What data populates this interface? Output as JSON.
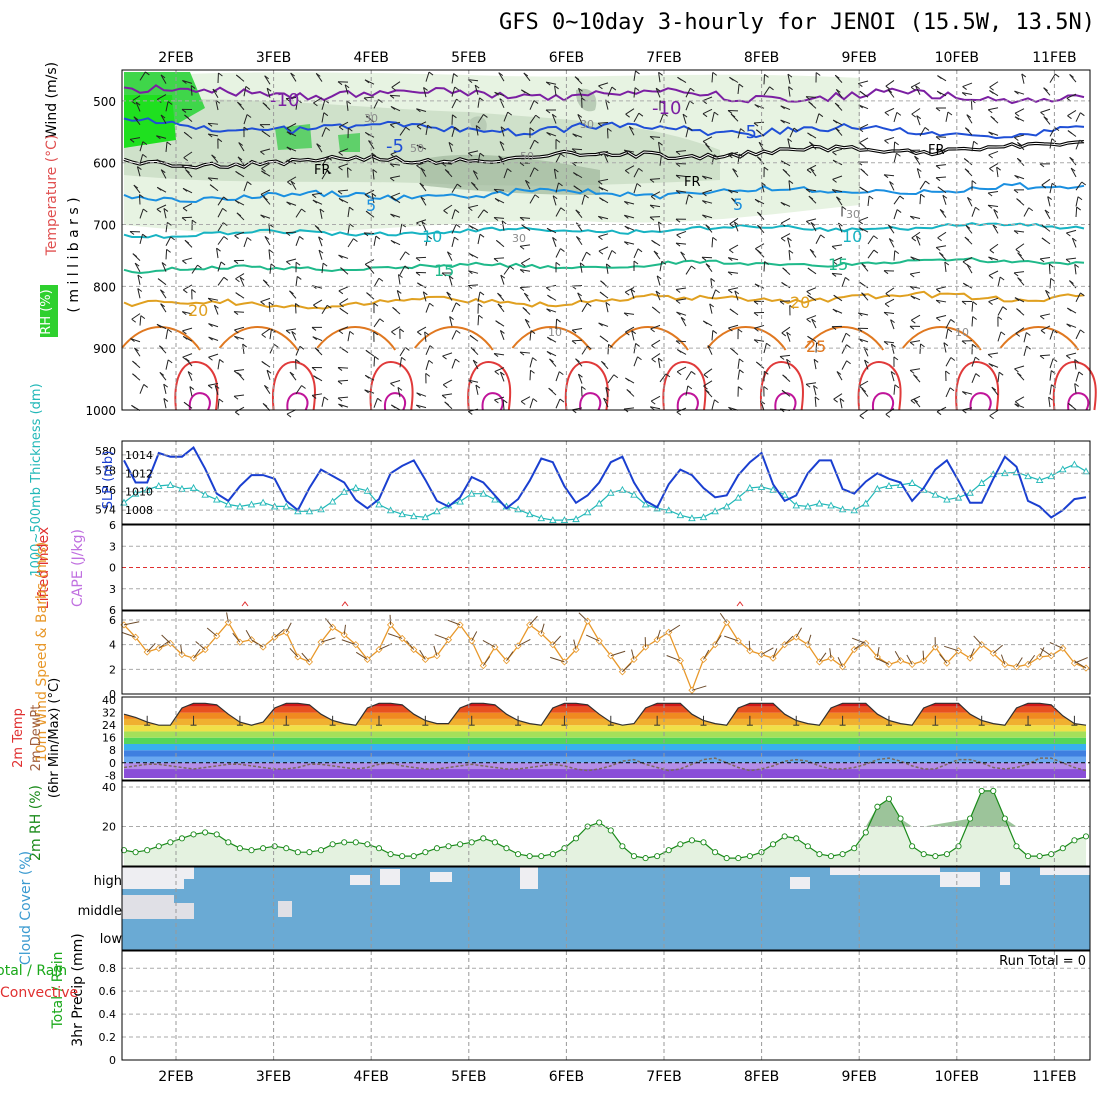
{
  "title": "GFS 0~10day 3-hourly for JENOI (15.5W, 13.5N)",
  "dates": [
    "2FEB",
    "3FEB",
    "4FEB",
    "5FEB",
    "6FEB",
    "7FEB",
    "8FEB",
    "9FEB",
    "10FEB",
    "11FEB"
  ],
  "chart_data": [
    {
      "panel": "upper_air",
      "type": "heatmap",
      "ylabel": [
        "Wind (m/s)",
        "Temperature (°C)",
        "RH (%)",
        "( m i l l i b a r s )"
      ],
      "yticks": [
        500,
        600,
        700,
        800,
        900,
        1000
      ],
      "temperature_contours": [
        {
          "label": "-10",
          "color": "#7b1fa2"
        },
        {
          "label": "-5",
          "color": "#1f4fd6"
        },
        {
          "label": "FR",
          "color": "#000000"
        },
        {
          "label": "5",
          "color": "#1a8fe0"
        },
        {
          "label": "10",
          "color": "#17b3c2"
        },
        {
          "label": "15",
          "color": "#1fb98a"
        },
        {
          "label": "20",
          "color": "#e0a020"
        },
        {
          "label": "25",
          "color": "#e07820"
        }
      ],
      "rh_labels": [
        "30",
        "50",
        "30",
        "10"
      ]
    },
    {
      "panel": "thickness_slp",
      "type": "line",
      "y_left_label": "1000~500mb Thickness (dm)",
      "y_right_label": "SLP (mb)",
      "y_left_ticks": [
        574,
        576,
        578,
        580
      ],
      "y_right_ticks": [
        1008,
        1010,
        1012,
        1014
      ],
      "series": [
        {
          "name": "SLP (mb)",
          "color": "#1a3fd0",
          "values": [
            1013.4,
            1011.0,
            1011.0,
            1014.2,
            1013.8,
            1013.8,
            1014.8,
            1012.5,
            1009.8,
            1009.0,
            1010.6,
            1011.8,
            1011.8,
            1011.4,
            1009.0,
            1008.0,
            1010.4,
            1012.4,
            1011.7,
            1011.0,
            1009.1,
            1008.2,
            1009.2,
            1012.0,
            1012.8,
            1013.4,
            1011.3,
            1009.0,
            1008.4,
            1009.4,
            1011.6,
            1011.0,
            1009.6,
            1008.2,
            1009.2,
            1011.2,
            1013.6,
            1013.2,
            1010.6,
            1008.8,
            1009.6,
            1011.0,
            1013.2,
            1013.8,
            1011.0,
            1009.0,
            1008.3,
            1010.8,
            1012.4,
            1011.8,
            1010.4,
            1009.4,
            1009.6,
            1011.8,
            1013.2,
            1014.2,
            1010.8,
            1009.0,
            1009.6,
            1012.0,
            1013.4,
            1013.4,
            1010.3,
            1009.8,
            1011.1,
            1012.0,
            1011.4,
            1011.0,
            1009.0,
            1010.4,
            1012.4,
            1013.4,
            1011.2,
            1008.8,
            1008.8,
            1011.4,
            1013.8,
            1012.7,
            1009.0,
            1008.4,
            1007.2,
            1008.0,
            1009.2,
            1009.4
          ]
        },
        {
          "name": "1000~500mb Thickness (dm)",
          "color": "#22b8b8",
          "values": [
            574.7,
            575.6,
            576.0,
            576.4,
            576.5,
            576.1,
            576.2,
            575.5,
            575.0,
            574.5,
            574.3,
            574.5,
            574.7,
            574.3,
            574.3,
            573.8,
            573.8,
            574.0,
            574.8,
            575.8,
            576.2,
            575.9,
            574.5,
            573.9,
            573.5,
            573.3,
            573.2,
            573.8,
            574.4,
            574.8,
            575.6,
            575.6,
            575.0,
            574.3,
            574.0,
            573.5,
            573.1,
            572.9,
            572.9,
            573.0,
            573.7,
            574.6,
            575.7,
            576.0,
            575.5,
            574.5,
            574.1,
            573.9,
            573.4,
            573.1,
            573.2,
            573.8,
            574.3,
            575.2,
            576.2,
            576.3,
            576.0,
            575.5,
            574.4,
            574.3,
            574.6,
            574.4,
            574.0,
            573.9,
            574.6,
            576.1,
            576.4,
            576.5,
            576.7,
            576.0,
            575.5,
            575.0,
            575.2,
            575.7,
            576.7,
            577.6,
            577.7,
            577.8,
            577.4,
            577.0,
            577.4,
            578.1,
            578.6,
            577.9
          ]
        }
      ]
    },
    {
      "panel": "cape_li",
      "type": "line",
      "y_left_label": "Lifted Index",
      "y_right_label": "CAPE (J/kg)",
      "y_left_ticks": [
        6,
        3,
        0,
        -3,
        -6
      ]
    },
    {
      "panel": "wind_10m",
      "type": "line",
      "ylabel": "10m Wind Speed & Barbs (m/s)",
      "y_ticks": [
        0,
        2,
        4,
        6
      ],
      "series": [
        {
          "name": "10m Wind Speed & Barbs",
          "color": "#e8982a",
          "values": [
            5.6,
            4.6,
            3.4,
            3.7,
            4.1,
            3.2,
            2.9,
            3.6,
            4.7,
            5.8,
            4.2,
            4.4,
            3.8,
            4.6,
            5.0,
            3.0,
            2.6,
            4.2,
            5.4,
            4.8,
            4.0,
            2.8,
            3.6,
            5.6,
            4.5,
            3.6,
            2.8,
            3.1,
            4.4,
            5.6,
            4.3,
            2.3,
            3.8,
            2.7,
            3.9,
            5.6,
            4.9,
            4.0,
            2.6,
            3.6,
            5.9,
            4.3,
            3.1,
            1.8,
            2.8,
            3.8,
            4.4,
            5.0,
            2.7,
            0.3,
            2.8,
            4.0,
            5.8,
            4.3,
            3.5,
            3.2,
            2.9,
            4.0,
            4.6,
            4.0,
            2.6,
            2.9,
            2.2,
            3.6,
            4.1,
            3.0,
            2.4,
            2.7,
            2.4,
            2.7,
            3.8,
            2.5,
            3.5,
            2.9,
            4.0,
            3.3,
            2.4,
            2.2,
            2.4,
            3.0,
            3.1,
            3.7,
            2.5,
            2.1
          ]
        }
      ]
    },
    {
      "panel": "temp_2m",
      "type": "area",
      "ylabel": [
        "2m Temp",
        "2m DewPt",
        "(6hr Min/Max) (°C)"
      ],
      "y_ticks": [
        40,
        32,
        24,
        16,
        8,
        0,
        -8
      ],
      "series": [
        {
          "name": "2m Temp",
          "color": "#303030",
          "values": [
            31,
            29,
            26,
            24,
            24,
            35,
            38,
            38,
            37,
            31,
            26,
            24,
            26,
            35,
            38,
            38,
            37,
            31,
            27,
            25,
            24,
            35,
            38,
            38,
            37,
            31,
            27,
            25,
            25,
            35,
            38,
            38,
            37,
            31,
            27,
            25,
            24,
            35,
            38,
            38,
            37,
            31,
            26,
            24,
            25,
            35,
            38,
            38,
            38,
            31,
            27,
            25,
            24,
            35,
            38,
            38,
            38,
            31,
            27,
            25,
            24,
            35,
            38,
            38,
            38,
            31,
            27,
            25,
            24,
            35,
            38,
            38,
            38,
            31,
            27,
            25,
            24,
            35,
            38,
            38,
            37,
            30,
            25,
            24
          ]
        },
        {
          "name": "2m DewPt",
          "color": "#606060",
          "values": [
            -3,
            -2,
            -1,
            -1,
            -2,
            -3,
            -4,
            -3,
            -2,
            -1,
            -1,
            -2,
            -3,
            -4,
            -4,
            -3,
            -1,
            -1,
            -2,
            -3,
            -4,
            -3,
            -1,
            0,
            -2,
            -3,
            -4,
            -4,
            -3,
            -2,
            -1,
            -2,
            -3,
            -4,
            -4,
            -3,
            -2,
            -1,
            -2,
            -4,
            -5,
            -4,
            -2,
            1,
            2,
            -1,
            -3,
            -5,
            -4,
            -1,
            2,
            3,
            0,
            -3,
            -5,
            -4,
            -2,
            1,
            2,
            1,
            -2,
            -4,
            -4,
            -3,
            -1,
            2,
            3,
            1,
            -2,
            -4,
            -4,
            -1,
            2,
            2,
            0,
            -3,
            -4,
            -3,
            -1,
            3,
            3,
            0,
            -3,
            -5
          ]
        }
      ]
    },
    {
      "panel": "rh_2m",
      "type": "area",
      "ylabel": "2m RH (%)",
      "y_ticks": [
        20,
        40
      ],
      "series": [
        {
          "name": "2m RH",
          "color": "#1a8a1a",
          "values": [
            8,
            7,
            8,
            10,
            12,
            14,
            16,
            17,
            16,
            12,
            9,
            8,
            9,
            10,
            9,
            7,
            7,
            8,
            11,
            12,
            12,
            11,
            9,
            6,
            5,
            5,
            7,
            9,
            10,
            11,
            12,
            14,
            12,
            9,
            6,
            5,
            5,
            6,
            9,
            14,
            20,
            22,
            18,
            10,
            5,
            4,
            5,
            8,
            11,
            13,
            12,
            7,
            4,
            4,
            5,
            7,
            11,
            15,
            14,
            10,
            6,
            5,
            6,
            9,
            17,
            30,
            34,
            24,
            10,
            6,
            5,
            6,
            10,
            24,
            38,
            38,
            24,
            10,
            5,
            5,
            6,
            9,
            13,
            15
          ]
        }
      ]
    },
    {
      "panel": "cloud_cover",
      "type": "heatmap",
      "ylabel": "Cloud Cover (%)",
      "levels": [
        "high",
        "middle",
        "low"
      ]
    },
    {
      "panel": "precip",
      "type": "bar",
      "ylabel": [
        "Total / Rain",
        "Convective",
        "3hr Precip (mm)"
      ],
      "y_ticks": [
        0,
        0.2,
        0.4,
        0.6,
        0.8
      ],
      "annotation": "Run Total = 0",
      "values": []
    }
  ]
}
